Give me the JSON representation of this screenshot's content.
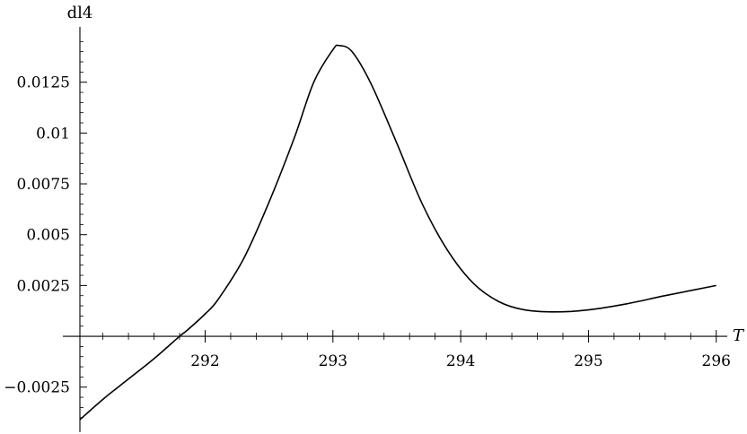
{
  "chart_data": {
    "type": "line",
    "xlabel": "T",
    "ylabel": "dl4",
    "xlim": [
      291.02,
      296.1
    ],
    "ylim": [
      -0.0041,
      0.015
    ],
    "grid": false,
    "legend": "none",
    "line_color": "#000000",
    "x_ticks": [
      {
        "value": 292,
        "label": "292"
      },
      {
        "value": 293,
        "label": "293"
      },
      {
        "value": 294,
        "label": "294"
      },
      {
        "value": 295,
        "label": "295"
      },
      {
        "value": 296,
        "label": "296"
      }
    ],
    "y_ticks": [
      {
        "value": -0.0025,
        "label": "−0.0025"
      },
      {
        "value": 0.0025,
        "label": "0.0025"
      },
      {
        "value": 0.005,
        "label": "0.005"
      },
      {
        "value": 0.0075,
        "label": "0.0075"
      },
      {
        "value": 0.01,
        "label": "0.01"
      },
      {
        "value": 0.0125,
        "label": "0.0125"
      }
    ],
    "series": [
      {
        "x": [
          291.02,
          291.2,
          291.4,
          291.6,
          291.8,
          291.86,
          292.0,
          292.1,
          292.3,
          292.5,
          292.7,
          292.85,
          293.0,
          293.05,
          293.15,
          293.3,
          293.5,
          293.7,
          293.9,
          294.1,
          294.3,
          294.5,
          294.75,
          295.0,
          295.3,
          295.6,
          296.0
        ],
        "y": [
          -0.0041,
          -0.0031,
          -0.0021,
          -0.0011,
          0.0,
          0.0003,
          0.0011,
          0.0018,
          0.0038,
          0.0066,
          0.0098,
          0.0125,
          0.0141,
          0.0143,
          0.014,
          0.0124,
          0.0095,
          0.0065,
          0.0042,
          0.0026,
          0.0017,
          0.0013,
          0.0012,
          0.0013,
          0.0016,
          0.002,
          0.0025
        ]
      }
    ]
  }
}
